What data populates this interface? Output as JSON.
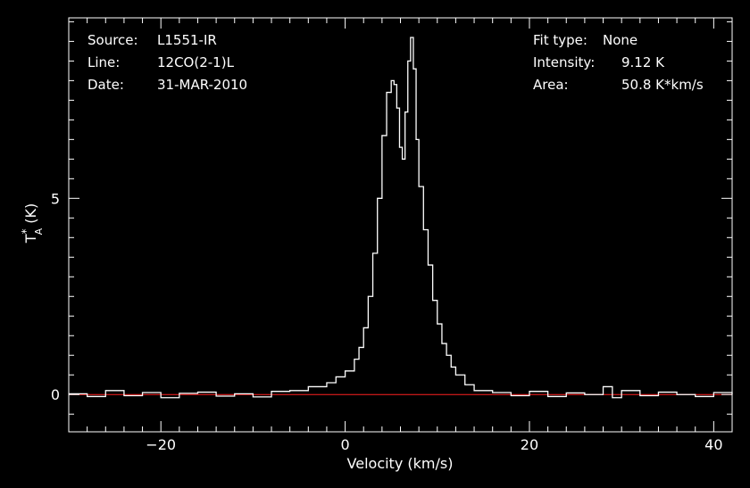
{
  "header": {
    "source_label": "Source:",
    "source_value": "L1551-IR",
    "line_label": "Line:",
    "line_value": "12CO(2-1)L",
    "date_label": "Date:",
    "date_value": "31-MAR-2010",
    "fit_label": "Fit type:",
    "fit_value": "None",
    "intensity_label": "Intensity:",
    "intensity_value": "9.12 K",
    "area_label": "Area:",
    "area_value": "50.8 K*km/s"
  },
  "colors": {
    "background": "#000000",
    "axes": "#ffffff",
    "spectrum": "#ffffff",
    "baseline": "#ff2020"
  },
  "chart_data": {
    "type": "line",
    "xlabel": "Velocity (km/s)",
    "ylabel_main": "T",
    "ylabel_sup": "*",
    "ylabel_sub": "A",
    "ylabel_unit": " (K)",
    "xlim": [
      -30,
      42
    ],
    "ylim": [
      -0.95,
      9.6
    ],
    "x_ticks": [
      -20,
      0,
      20,
      40
    ],
    "x_tick_labels": [
      "−20",
      "0",
      "20",
      "40"
    ],
    "y_ticks": [
      0,
      5
    ],
    "y_tick_labels": [
      "0",
      "5"
    ],
    "grid": false,
    "baseline_y": 0,
    "series": [
      {
        "style": "step",
        "x": [
          -30,
          -28,
          -26,
          -24,
          -22,
          -20,
          -18,
          -16,
          -14,
          -12,
          -10,
          -8,
          -6,
          -4,
          -2,
          -1,
          0,
          1,
          1.5,
          2,
          2.5,
          3,
          3.5,
          4,
          4.5,
          5,
          5.3,
          5.6,
          5.9,
          6.2,
          6.5,
          6.8,
          7.1,
          7.4,
          7.7,
          8.0,
          8.5,
          9,
          9.5,
          10,
          10.5,
          11,
          11.5,
          12,
          13,
          14,
          16,
          18,
          20,
          22,
          24,
          26,
          28,
          29,
          30,
          32,
          34,
          36,
          38,
          40,
          42
        ],
        "y": [
          0.02,
          -0.05,
          0.1,
          -0.03,
          0.05,
          -0.08,
          0.03,
          0.06,
          -0.04,
          0.02,
          -0.06,
          0.08,
          0.1,
          0.2,
          0.3,
          0.45,
          0.6,
          0.9,
          1.2,
          1.7,
          2.5,
          3.6,
          5.0,
          6.6,
          7.7,
          8.0,
          7.9,
          7.3,
          6.3,
          6.0,
          7.2,
          8.5,
          9.1,
          8.3,
          6.5,
          5.3,
          4.2,
          3.3,
          2.4,
          1.8,
          1.3,
          1.0,
          0.7,
          0.5,
          0.25,
          0.1,
          0.05,
          -0.03,
          0.08,
          -0.05,
          0.04,
          0.0,
          0.2,
          -0.08,
          0.1,
          -0.03,
          0.06,
          0.0,
          -0.05,
          0.05,
          0.0
        ]
      }
    ]
  }
}
